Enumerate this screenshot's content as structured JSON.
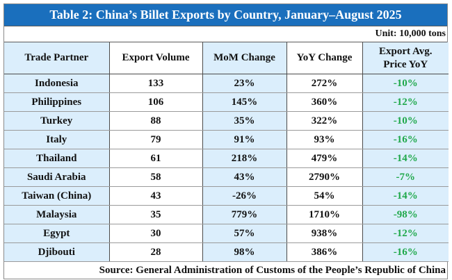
{
  "title": "Table 2: China’s Billet Exports by Country, January–August 2025",
  "unit": "Unit: 10,000 tons",
  "headers": [
    "Trade Partner",
    "Export Volume",
    "MoM Change",
    "YoY Change",
    "Export Avg.\nPrice YoY"
  ],
  "header_last_line1": "Export Avg.",
  "header_last_line2": "Price YoY",
  "rows": [
    {
      "partner": "Indonesia",
      "volume": "133",
      "mom": "23%",
      "yoy": "272%",
      "price_yoy": "-10%"
    },
    {
      "partner": "Philippines",
      "volume": "106",
      "mom": "145%",
      "yoy": "360%",
      "price_yoy": "-12%"
    },
    {
      "partner": "Turkey",
      "volume": "88",
      "mom": "35%",
      "yoy": "322%",
      "price_yoy": "-10%"
    },
    {
      "partner": "Italy",
      "volume": "79",
      "mom": "91%",
      "yoy": "93%",
      "price_yoy": "-16%"
    },
    {
      "partner": "Thailand",
      "volume": "61",
      "mom": "218%",
      "yoy": "479%",
      "price_yoy": "-14%"
    },
    {
      "partner": "Saudi Arabia",
      "volume": "58",
      "mom": "43%",
      "yoy": "2790%",
      "price_yoy": "-7%"
    },
    {
      "partner": "Taiwan (China)",
      "volume": "43",
      "mom": "-26%",
      "yoy": "54%",
      "price_yoy": "-14%"
    },
    {
      "partner": "Malaysia",
      "volume": "35",
      "mom": "779%",
      "yoy": "1710%",
      "price_yoy": "-98%"
    },
    {
      "partner": "Egypt",
      "volume": "30",
      "mom": "57%",
      "yoy": "938%",
      "price_yoy": "-12%"
    },
    {
      "partner": "Djibouti",
      "volume": "28",
      "mom": "98%",
      "yoy": "386%",
      "price_yoy": "-16%"
    }
  ],
  "source": "Source: General Administration of Customs of the People’s Republic of China",
  "colors": {
    "title_bg": "#1a6fbd",
    "alt_column_bg": "#dbeefc",
    "negative_price_text": "#1fa84a"
  }
}
